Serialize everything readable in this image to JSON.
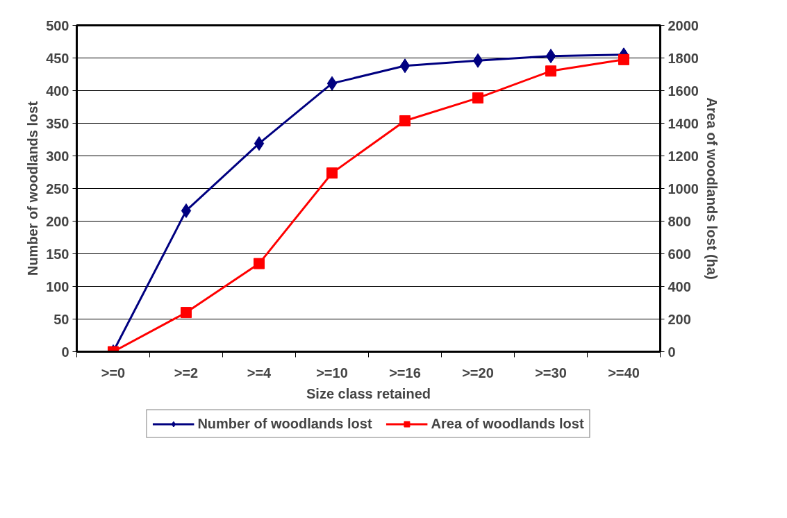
{
  "chart_data": {
    "type": "line",
    "xlabel": "Size class retained",
    "ylabel": "Number of woodlands lost",
    "y2label": "Area of woodlands lost (ha)",
    "categories": [
      ">=0",
      ">=2",
      ">=4",
      ">=10",
      ">=16",
      ">=20",
      ">=30",
      ">=40"
    ],
    "series": [
      {
        "name": "Number of woodlands lost",
        "color": "#000080",
        "marker": "diamond",
        "values": [
          0,
          216,
          319,
          411,
          438,
          446,
          453,
          455
        ]
      },
      {
        "name": "Area of woodlands lost",
        "color": "#ff0000",
        "marker": "square",
        "axis": "y2",
        "values": [
          0,
          240,
          540,
          1095,
          1415,
          1555,
          1720,
          1790
        ]
      }
    ],
    "ylim": [
      0,
      500
    ],
    "yticks": [
      0,
      50,
      100,
      150,
      200,
      250,
      300,
      350,
      400,
      450,
      500
    ],
    "y2lim": [
      0,
      2000
    ],
    "y2ticks": [
      0,
      200,
      400,
      600,
      800,
      1000,
      1200,
      1400,
      1600,
      1800,
      2000
    ],
    "grid": "y",
    "legend": "bottom",
    "line_style": "solid"
  }
}
